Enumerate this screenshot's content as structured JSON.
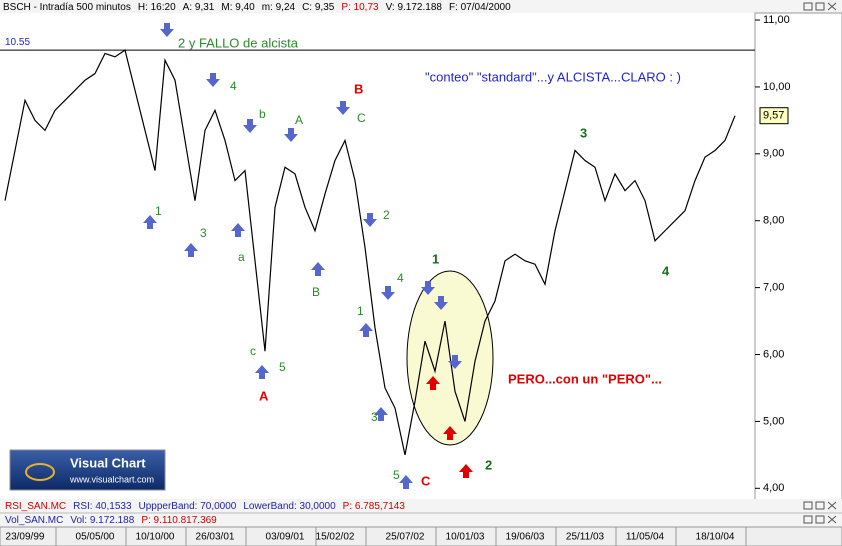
{
  "chart_data": {
    "type": "line",
    "header": [
      "BSCH - Intradía 500 minutos",
      "H: 16:20",
      "A: 9,31",
      "M: 9,40",
      "m: 9,24",
      "C: 9,35",
      "P: 10,73",
      "V: 9.172.188",
      "F: 07/04/2000"
    ],
    "categories": [
      null,
      null,
      "23/09/99",
      null,
      null,
      null,
      null,
      null,
      null,
      "05/05/00",
      null,
      null,
      null,
      null,
      null,
      "10/10/00",
      null,
      null,
      null,
      null,
      null,
      "26/03/01",
      null,
      null,
      null,
      null,
      null,
      null,
      "03/09/01",
      null,
      null,
      null,
      null,
      "15/02/02",
      null,
      null,
      null,
      null,
      null,
      null,
      "25/07/02",
      null,
      null,
      null,
      null,
      null,
      "10/01/03",
      null,
      null,
      null,
      null,
      null,
      "19/06/03",
      null,
      null,
      null,
      null,
      null,
      "25/11/03",
      null,
      null,
      null,
      null,
      null,
      "11/05/04",
      null,
      null,
      null,
      null,
      null,
      null,
      "18/10/04",
      null,
      null
    ],
    "values": [
      8.3,
      9.05,
      9.8,
      9.5,
      9.35,
      9.65,
      9.8,
      9.95,
      10.1,
      10.2,
      10.5,
      10.45,
      10.55,
      9.95,
      9.35,
      8.75,
      10.4,
      10.1,
      9.2,
      8.3,
      9.35,
      9.65,
      9.2,
      8.6,
      8.75,
      7.4,
      6.05,
      8.2,
      8.8,
      8.7,
      8.2,
      7.85,
      8.4,
      8.9,
      9.2,
      8.6,
      7.6,
      6.4,
      5.5,
      5.2,
      4.5,
      5.3,
      6.2,
      5.75,
      6.5,
      5.45,
      5.0,
      5.9,
      6.5,
      6.8,
      7.4,
      7.5,
      7.4,
      7.35,
      7.05,
      7.85,
      8.45,
      9.05,
      8.9,
      8.8,
      8.3,
      8.7,
      8.45,
      8.6,
      8.3,
      7.7,
      7.85,
      8.0,
      8.15,
      8.6,
      8.95,
      9.05,
      9.2,
      9.57
    ],
    "color": "#000000",
    "ylim": [
      3.87,
      11.15
    ],
    "yticks": [
      {
        "value": 4,
        "label": "4,00"
      },
      {
        "value": 5,
        "label": "5,00"
      },
      {
        "value": 6,
        "label": "6,00"
      },
      {
        "value": 7,
        "label": "7,00"
      },
      {
        "value": 8,
        "label": "8,00"
      },
      {
        "value": 9,
        "label": "9,00"
      },
      {
        "value": 10,
        "label": "10,00"
      },
      {
        "value": 11,
        "label": "11,00"
      }
    ],
    "hline": 10.55,
    "last_price": {
      "value": 9.57,
      "label": "9,57"
    },
    "annotations": [
      {
        "text": "2 y FALLO de alcista",
        "color": "#2a8a2a"
      },
      {
        "text": "\"conteo\" \"standard\"...y ALCISTA...CLARO : )",
        "color": "#2222cc"
      },
      {
        "text": "PERO...con un \"PERO\"...",
        "color": "#e00000"
      },
      {
        "text": "1",
        "color": "#2a8a2a"
      },
      {
        "text": "3",
        "color": "#2a8a2a"
      },
      {
        "text": "4",
        "color": "#2a8a2a"
      },
      {
        "text": "b",
        "color": "#2a8a2a"
      },
      {
        "text": "A",
        "color": "#2a8a2a"
      },
      {
        "text": "a",
        "color": "#2a8a2a"
      },
      {
        "text": "B",
        "color": "#2a8a2a"
      },
      {
        "text": "c",
        "color": "#2a8a2a"
      },
      {
        "text": "5",
        "color": "#2a8a2a"
      },
      {
        "text": "A",
        "color": "#e00000"
      },
      {
        "text": "B",
        "color": "#e00000"
      },
      {
        "text": "C",
        "color": "#2a8a2a"
      },
      {
        "text": "2",
        "color": "#2a8a2a"
      },
      {
        "text": "1",
        "color": "#2a8a2a"
      },
      {
        "text": "4",
        "color": "#2a8a2a"
      },
      {
        "text": "3",
        "color": "#2a8a2a"
      },
      {
        "text": "5",
        "color": "#2a8a2a"
      },
      {
        "text": "C",
        "color": "#e00000"
      },
      {
        "text": "1",
        "color": "#157015"
      },
      {
        "text": "2",
        "color": "#157015"
      },
      {
        "text": "3",
        "color": "#157015"
      },
      {
        "text": "4",
        "color": "#157015"
      }
    ],
    "logo": [
      "Visual Chart",
      "www.visualchart.com"
    ],
    "rsi_panel": [
      "RSI_SAN.MC",
      "RSI: 40,1533",
      "UppperBand: 70,0000",
      "LowerBand: 30,0000",
      "P: 6.785,7143"
    ],
    "vol_panel": [
      "Vol_SAN.MC",
      "Vol: 9.172.188",
      "P: 9.110.817.369"
    ]
  }
}
